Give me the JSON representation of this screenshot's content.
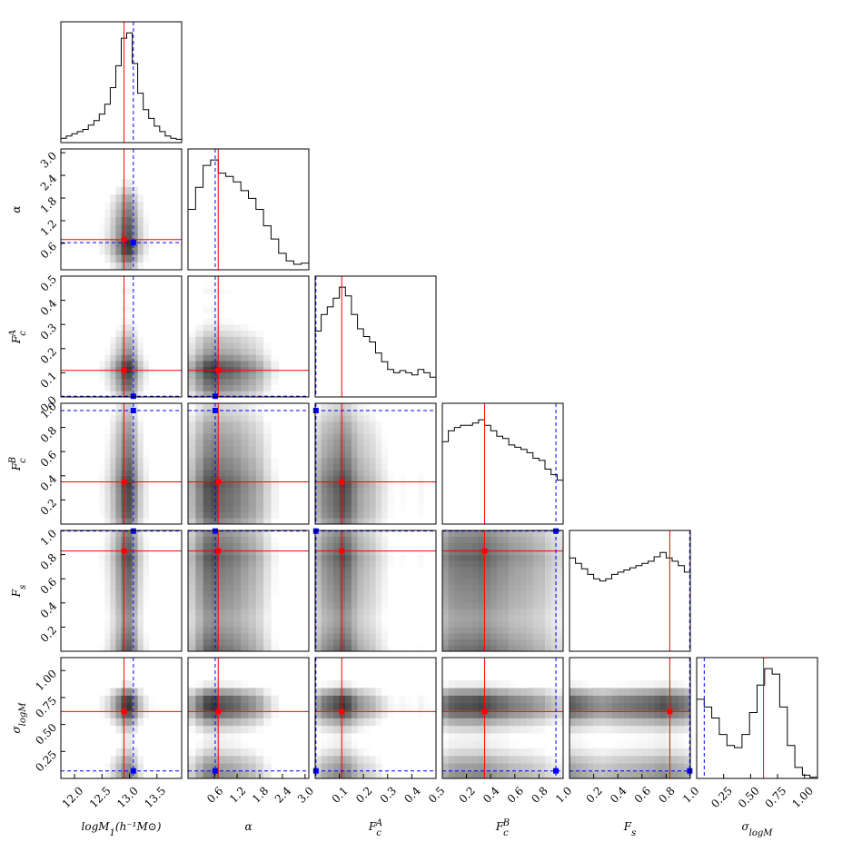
{
  "chart_data": {
    "type": "corner",
    "truth_color": "#ff0000",
    "alt_color": "#0000ff",
    "hist_ylim": [
      0,
      110
    ],
    "params": [
      {
        "label": {
          "text": "logM",
          "sub": "1",
          "rest": "(h⁻¹M⊙)"
        },
        "lim": [
          11.75,
          13.95
        ],
        "truth": 12.9,
        "alt": 13.07,
        "bins": [
          11.75,
          11.85,
          11.95,
          12.05,
          12.15,
          12.25,
          12.35,
          12.45,
          12.55,
          12.65,
          12.75,
          12.85,
          12.95,
          13.05,
          13.15,
          13.25,
          13.35,
          13.45,
          13.55,
          13.65,
          13.75,
          13.85,
          13.95
        ],
        "hist": [
          4,
          6,
          8,
          10,
          12,
          16,
          20,
          26,
          35,
          50,
          70,
          95,
          100,
          72,
          45,
          30,
          22,
          15,
          10,
          6,
          4,
          3
        ],
        "xticks": [
          {
            "value": 12.0,
            "label": "12.0"
          },
          12.5,
          {
            "value": 13.0,
            "label": "13.0"
          },
          13.5
        ]
      },
      {
        "label": {
          "text": "α"
        },
        "lim": [
          -0.1,
          3.1
        ],
        "truth": 0.7,
        "alt": 0.62,
        "bins": [
          -0.1,
          0.1,
          0.3,
          0.5,
          0.7,
          0.9,
          1.1,
          1.3,
          1.5,
          1.7,
          1.9,
          2.1,
          2.3,
          2.5,
          2.7,
          2.9,
          3.1
        ],
        "hist": [
          55,
          75,
          95,
          100,
          88,
          85,
          80,
          72,
          65,
          55,
          40,
          28,
          15,
          8,
          5,
          6
        ],
        "xticks": [
          0.6,
          1.2,
          1.8,
          2.4,
          {
            "value": 3.0,
            "label": "3.0"
          }
        ],
        "yticks": [
          0.6,
          1.2,
          1.8,
          2.4,
          {
            "value": 3.0,
            "label": "3.0"
          }
        ]
      },
      {
        "label": {
          "text": "F",
          "sub": "c",
          "sup": "A"
        },
        "lim": [
          0,
          0.5
        ],
        "truth": 0.11,
        "alt": 0.003,
        "bins": [
          0,
          0.025,
          0.05,
          0.075,
          0.1,
          0.125,
          0.15,
          0.175,
          0.2,
          0.225,
          0.25,
          0.275,
          0.3,
          0.325,
          0.35,
          0.375,
          0.4,
          0.425,
          0.45,
          0.475,
          0.5
        ],
        "hist": [
          60,
          75,
          82,
          90,
          100,
          92,
          75,
          62,
          55,
          50,
          40,
          32,
          25,
          22,
          24,
          22,
          20,
          25,
          22,
          18
        ],
        "xticks": [
          0.1,
          0.2,
          0.3,
          0.4,
          0.5
        ],
        "yticks": [
          {
            "value": 0,
            "label": "0.0"
          },
          0.1,
          0.2,
          0.3,
          0.4,
          0.5
        ]
      },
      {
        "label": {
          "text": "F",
          "sub": "c",
          "sup": "B"
        },
        "lim": [
          0,
          1
        ],
        "truth": 0.35,
        "alt": 0.94,
        "bins": [
          0,
          0.05,
          0.1,
          0.15,
          0.2,
          0.25,
          0.3,
          0.35,
          0.4,
          0.45,
          0.5,
          0.55,
          0.6,
          0.65,
          0.7,
          0.75,
          0.8,
          0.85,
          0.9,
          0.95,
          1
        ],
        "hist": [
          75,
          85,
          88,
          90,
          90,
          92,
          95,
          90,
          85,
          80,
          78,
          72,
          70,
          68,
          65,
          60,
          58,
          50,
          45,
          40
        ],
        "xticks": [
          0.2,
          0.4,
          0.6,
          0.8,
          {
            "value": 1,
            "label": "1.0"
          }
        ],
        "yticks": [
          0.2,
          0.4,
          0.6,
          0.8,
          {
            "value": 1,
            "label": "1.0"
          }
        ]
      },
      {
        "label": {
          "text": "F",
          "sub": "s"
        },
        "lim": [
          0,
          1
        ],
        "truth": 0.83,
        "alt": 0.995,
        "bins": [
          0,
          0.05,
          0.1,
          0.15,
          0.2,
          0.25,
          0.3,
          0.35,
          0.4,
          0.45,
          0.5,
          0.55,
          0.6,
          0.65,
          0.7,
          0.75,
          0.8,
          0.85,
          0.9,
          0.95,
          1
        ],
        "hist": [
          85,
          80,
          75,
          70,
          66,
          64,
          66,
          70,
          72,
          74,
          76,
          78,
          80,
          82,
          86,
          90,
          85,
          82,
          78,
          72
        ],
        "xticks": [
          0.2,
          0.4,
          0.6,
          0.8,
          {
            "value": 1,
            "label": "1.0"
          }
        ],
        "yticks": [
          0.2,
          0.4,
          0.6,
          0.8,
          {
            "value": 1,
            "label": "1.0"
          }
        ]
      },
      {
        "label": {
          "text": "σ",
          "sub": "logM"
        },
        "lim": [
          0,
          1.12
        ],
        "truth": 0.62,
        "alt": 0.07,
        "bins": [
          0,
          0.07,
          0.14,
          0.21,
          0.28,
          0.35,
          0.42,
          0.49,
          0.56,
          0.63,
          0.7,
          0.77,
          0.84,
          0.91,
          0.98,
          1.05,
          1.12
        ],
        "hist": [
          72,
          65,
          55,
          40,
          30,
          28,
          40,
          60,
          85,
          100,
          95,
          65,
          30,
          10,
          3,
          1
        ],
        "xticks": [
          0.25,
          {
            "value": 0.5,
            "label": "0.50"
          },
          0.75,
          {
            "value": 1,
            "label": "1.00"
          }
        ],
        "yticks": [
          0.25,
          {
            "value": 0.5,
            "label": "0.50"
          },
          0.75,
          {
            "value": 1,
            "label": "1.00"
          }
        ]
      }
    ]
  }
}
